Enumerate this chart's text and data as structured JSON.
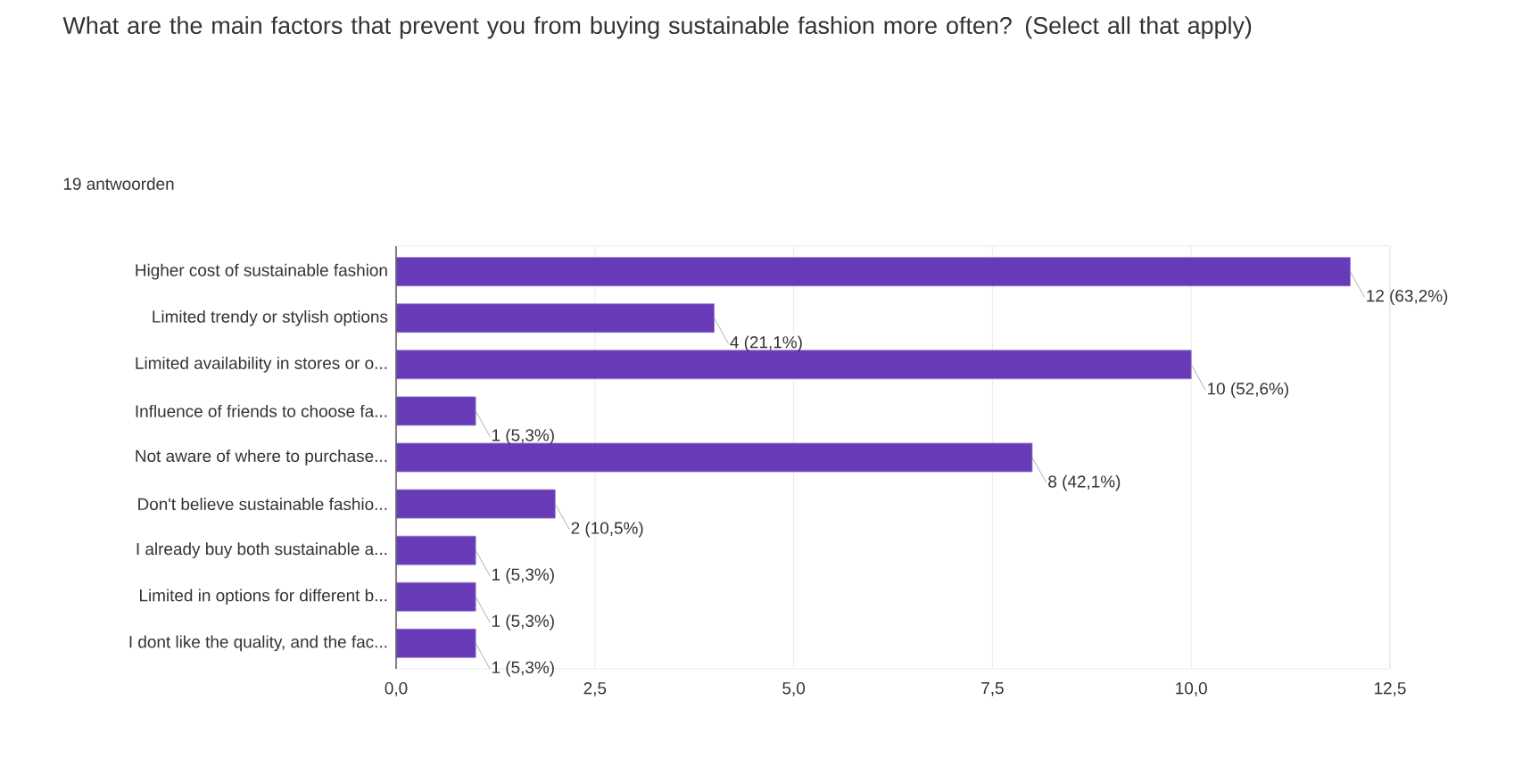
{
  "chart_data": {
    "type": "bar",
    "orientation": "horizontal",
    "title": "What are the main factors that prevent you from buying sustainable fashion more often? (Select all that apply)",
    "subtitle": "19 antwoorden",
    "categories": [
      "Higher cost of sustainable fashion",
      "Limited trendy or stylish options",
      "Limited availability in stores or o...",
      "Influence of friends to choose fa...",
      "Not aware of where to purchase...",
      "Don't believe sustainable fashio...",
      "I already buy both sustainable a...",
      "Limited in options for different b...",
      "I dont like the quality, and the fac..."
    ],
    "values": [
      12,
      4,
      10,
      1,
      8,
      2,
      1,
      1,
      1
    ],
    "value_labels": [
      "12 (63,2%)",
      "4 (21,1%)",
      "10 (52,6%)",
      "1 (5,3%)",
      "8 (42,1%)",
      "2 (10,5%)",
      "1 (5,3%)",
      "1 (5,3%)",
      "1 (5,3%)"
    ],
    "color": "#673ab7",
    "xlim": [
      0,
      12.5
    ],
    "xticks": [
      {
        "value": 0,
        "label": "0,0"
      },
      {
        "value": 2.5,
        "label": "2,5"
      },
      {
        "value": 5,
        "label": "5,0"
      },
      {
        "value": 7.5,
        "label": "7,5"
      },
      {
        "value": 10,
        "label": "10,0"
      },
      {
        "value": 12.5,
        "label": "12,5"
      }
    ],
    "grid": "x"
  }
}
